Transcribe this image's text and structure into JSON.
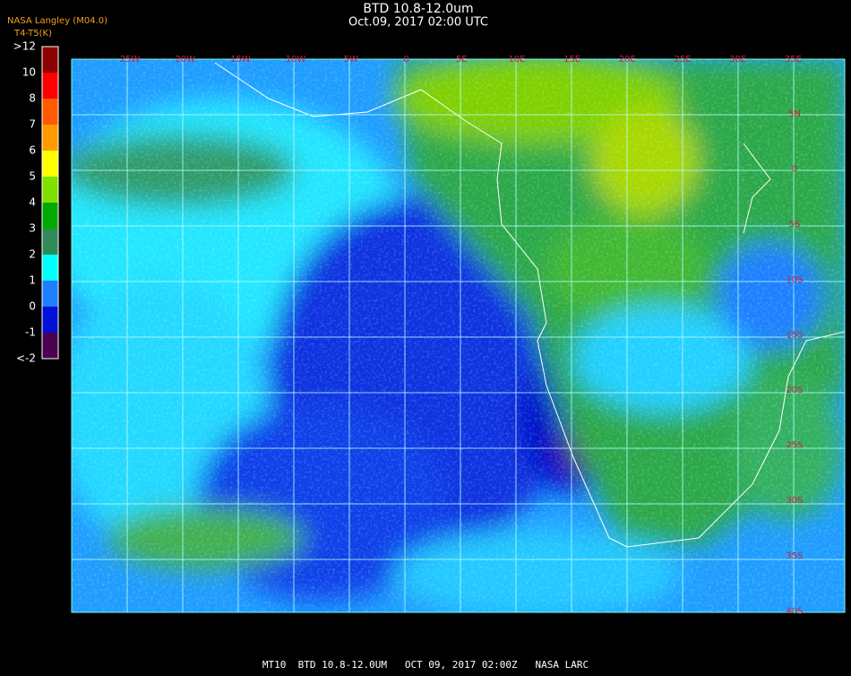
{
  "header": {
    "title": "BTD 10.8-12.0um",
    "subtitle": "Oct.09, 2017 02:00 UTC",
    "source": "NASA Langley (M04.0)",
    "units": "T4-T5(K)"
  },
  "colorbar": {
    "labels": [
      ">12",
      "10",
      "8",
      "7",
      "6",
      "5",
      "4",
      "3",
      "2",
      "1",
      "0",
      "-1",
      "<-2"
    ],
    "colors": [
      "#8b0000",
      "#ff0000",
      "#ff5a00",
      "#ff9a00",
      "#ffff00",
      "#80e000",
      "#00a800",
      "#2e8b57",
      "#00ffff",
      "#1e7fff",
      "#0010d8",
      "#4b0050"
    ]
  },
  "map": {
    "longitude_labels": [
      "25W",
      "20W",
      "15W",
      "10W",
      "5W",
      "0",
      "5E",
      "10E",
      "15E",
      "20E",
      "25E",
      "30E",
      "35E"
    ],
    "latitude_labels": [
      "5N",
      "0",
      "5S",
      "10S",
      "15S",
      "20S",
      "25S",
      "30S",
      "35S",
      "40S"
    ]
  },
  "footer": "MT10  BTD 10.8-12.0UM   OCT 09, 2017 02:00Z   NASA LARC"
}
